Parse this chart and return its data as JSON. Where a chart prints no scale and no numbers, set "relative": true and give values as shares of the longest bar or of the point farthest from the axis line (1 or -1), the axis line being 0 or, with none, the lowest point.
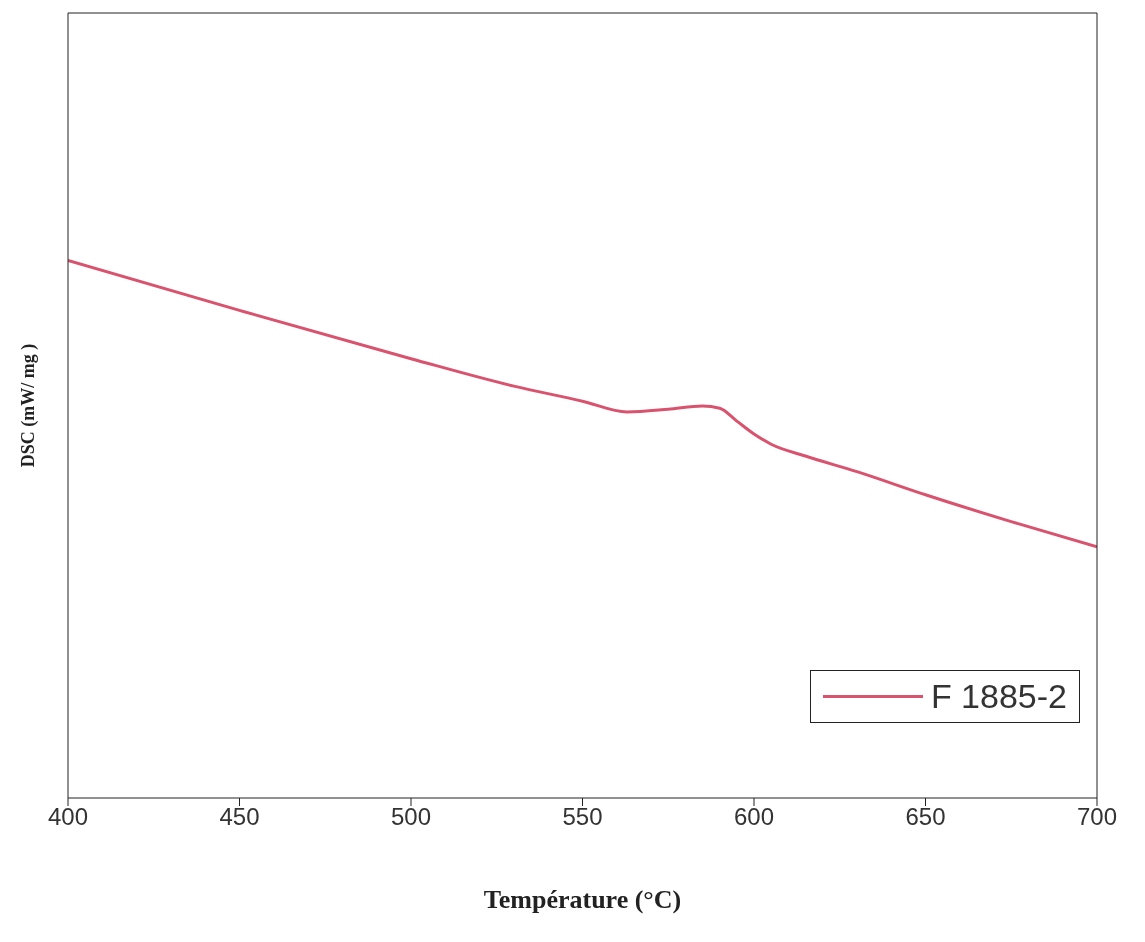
{
  "chart_data": {
    "type": "line",
    "relative": true,
    "xlabel": "Température (°C)",
    "ylabel": "DSC (mW/ mg )",
    "xlim": [
      400,
      700
    ],
    "xticks": [
      400,
      450,
      500,
      550,
      600,
      650,
      700
    ],
    "series": [
      {
        "name": "F 1885-2",
        "color": "#d9536e",
        "x": [
          400,
          450,
          500,
          530,
          550,
          563,
          575,
          585,
          590,
          595,
          600,
          605,
          615,
          630,
          650,
          675,
          700
        ],
        "values": [
          1,
          0.907,
          0.817,
          0.766,
          0.738,
          0.718,
          0.723,
          0.729,
          0.725,
          0.701,
          0.677,
          0.658,
          0.636,
          0.607,
          0.564,
          0.514,
          0.467
        ]
      }
    ],
    "legend": "bottom right",
    "grid": false,
    "marker": "none",
    "line_style": "solid"
  }
}
